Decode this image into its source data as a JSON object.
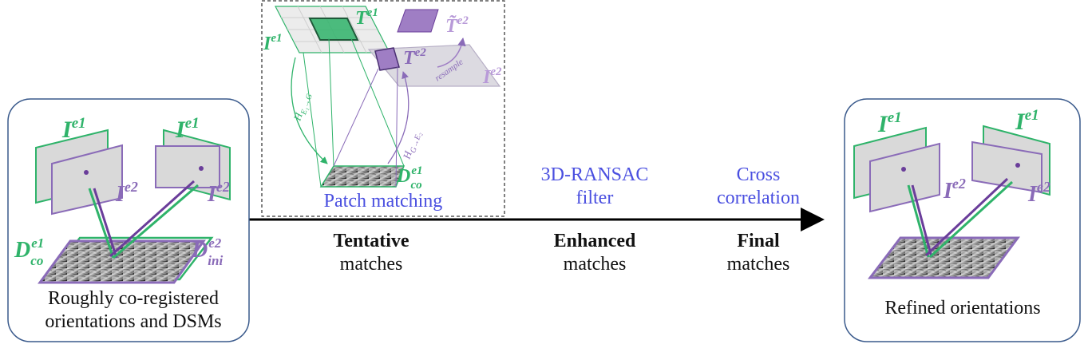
{
  "colors": {
    "green": "#2fb36a",
    "purple": "#8a6bb8",
    "dark_purple": "#6a3d9a",
    "flow_label": "#4a4fe0",
    "frame": "#3a5a8c",
    "arrow": "#000000"
  },
  "left_panel": {
    "caption_line1": "Roughly co-registered",
    "caption_line2": "orientations and DSMs",
    "image1_label": "I",
    "image1_sup": "e1",
    "image2_label": "I",
    "image2_sup": "e2",
    "dsm1_label": "D",
    "dsm1_sup": "e1",
    "dsm1_sub": "co",
    "dsm2_label": "D",
    "dsm2_sup": "e2",
    "dsm2_sub": "ini"
  },
  "patch_panel": {
    "caption": "Patch matching",
    "image1_label": "I",
    "image1_sup": "e1",
    "template1_label": "T",
    "template1_sup": "e1",
    "template_resampled_label": "T̃",
    "template_resampled_sup": "e2",
    "template2_label": "T",
    "template2_sup": "e2",
    "image2_label": "I",
    "image2_sup": "e2",
    "resample_label": "resample",
    "h1_label": "H",
    "h1_sub": "E₁→G",
    "h2_label": "H",
    "h2_sub": "G→E₂",
    "dsm_label": "D",
    "dsm_sup": "e1",
    "dsm_sub": "co"
  },
  "flow": {
    "stage1_bold": "Tentative",
    "stage1_rest": "matches",
    "step2_line1": "3D-RANSAC",
    "step2_line2": "filter",
    "stage2_bold": "Enhanced",
    "stage2_rest": "matches",
    "step3_line1": "Cross",
    "step3_line2": "correlation",
    "stage3_bold": "Final",
    "stage3_rest": "matches"
  },
  "right_panel": {
    "caption": "Refined orientations",
    "image1_label": "I",
    "image1_sup": "e1",
    "image2_label": "I",
    "image2_sup": "e2"
  }
}
